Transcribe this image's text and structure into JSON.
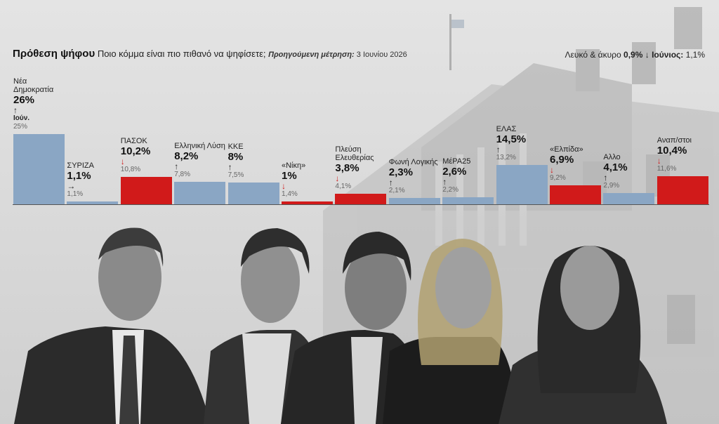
{
  "header": {
    "title": "Πρόθεση ψήφου",
    "question": "Ποιο κόμμα είναι πιο πιθανό να ψηφίσετε;",
    "prev_label": "Προηγούμενη μέτρηση:",
    "prev_date": "3 Ιουνίου 2026"
  },
  "blank_vote": {
    "label": "Λευκό & άκυρο",
    "value": "0,9%",
    "arrow": "↓",
    "month_label": "Ιούνιος:",
    "prev_value": "1,1%"
  },
  "colors": {
    "up": "#8aa6c4",
    "down": "#d11a1a"
  },
  "chart_data": {
    "type": "bar",
    "title": "Πρόθεση ψήφου",
    "categories": [
      "Νέα Δημοκρατία",
      "ΣΥΡΙΖΑ",
      "ΠΑΣΟΚ",
      "Ελληνική Λύση",
      "ΚΚΕ",
      "«Νίκη»",
      "Πλεύση Ελευθερίας",
      "Φωνή Λογικής",
      "ΜέΡΑ25",
      "ΕΛΑΣ",
      "«Ελπίδα»",
      "Αλλο",
      "Αναπ/στοι"
    ],
    "series": [
      {
        "name": "current",
        "values": [
          26,
          1.1,
          10.2,
          8.2,
          8,
          1,
          3.8,
          2.3,
          2.6,
          14.5,
          6.9,
          4.1,
          10.4
        ]
      },
      {
        "name": "previous",
        "values": [
          25,
          1.1,
          10.8,
          7.8,
          7.5,
          1.4,
          4.1,
          2.1,
          2.2,
          13.2,
          9.2,
          2.9,
          11.6
        ]
      }
    ],
    "ylim": [
      0,
      26
    ]
  },
  "parties": [
    {
      "name": "Νέα Δημοκρατία",
      "value": "26%",
      "arrow": "↑",
      "dir": "up",
      "month": "Ιούν.",
      "prev": "25%"
    },
    {
      "name": "ΣΥΡΙΖΑ",
      "value": "1,1%",
      "arrow": "→",
      "dir": "flat",
      "prev": "1,1%"
    },
    {
      "name": "ΠΑΣΟΚ",
      "value": "10,2%",
      "arrow": "↓",
      "dir": "down",
      "prev": "10,8%"
    },
    {
      "name": "Ελληνική Λύση",
      "value": "8,2%",
      "arrow": "↑",
      "dir": "up",
      "prev": "7,8%"
    },
    {
      "name": "ΚΚΕ",
      "value": "8%",
      "arrow": "↑",
      "dir": "up",
      "prev": "7,5%"
    },
    {
      "name": "«Νίκη»",
      "value": "1%",
      "arrow": "↓",
      "dir": "down",
      "prev": "1,4%"
    },
    {
      "name": "Πλεύση Ελευθερίας",
      "value": "3,8%",
      "arrow": "↓",
      "dir": "down",
      "prev": "4,1%"
    },
    {
      "name": "Φωνή Λογικής",
      "value": "2,3%",
      "arrow": "↑",
      "dir": "up",
      "prev": "2,1%"
    },
    {
      "name": "ΜέΡΑ25",
      "value": "2,6%",
      "arrow": "↑",
      "dir": "up",
      "prev": "2,2%"
    },
    {
      "name": "ΕΛΑΣ",
      "value": "14,5%",
      "arrow": "↑",
      "dir": "up",
      "prev": "13,2%"
    },
    {
      "name": "«Ελπίδα»",
      "value": "6,9%",
      "arrow": "↓",
      "dir": "down",
      "prev": "9,2%"
    },
    {
      "name": "Αλλο",
      "value": "4,1%",
      "arrow": "↑",
      "dir": "up",
      "prev": "2,9%"
    },
    {
      "name": "Αναπ/στοι",
      "value": "10,4%",
      "arrow": "↓",
      "dir": "down",
      "prev": "11,6%"
    }
  ]
}
